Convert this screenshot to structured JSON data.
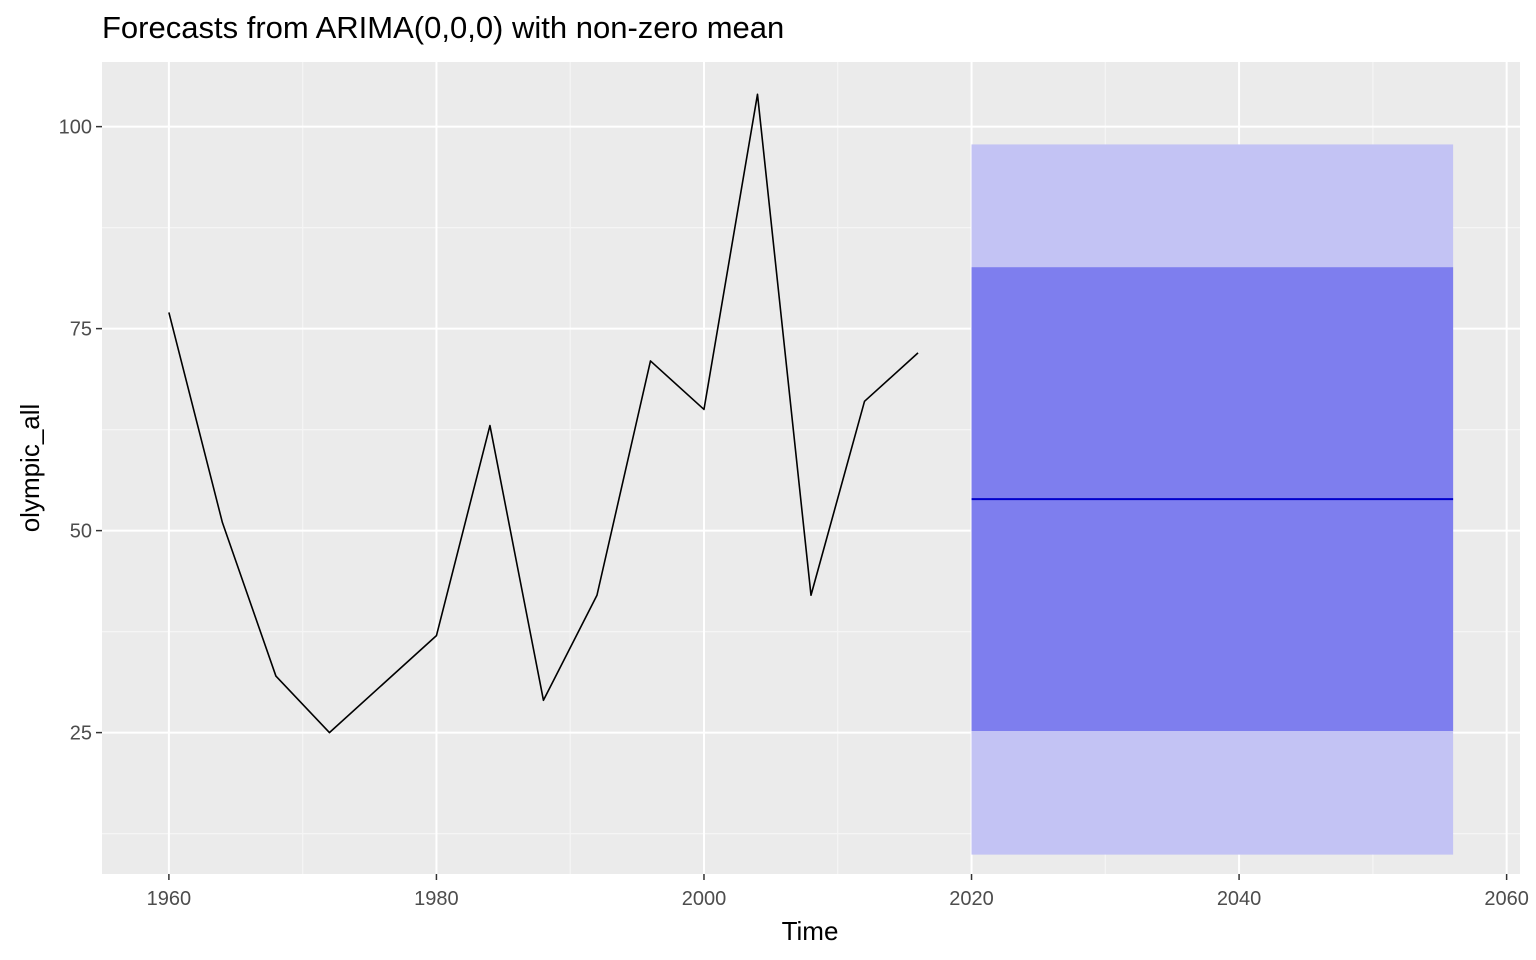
{
  "chart_data": {
    "type": "line",
    "title": "Forecasts from ARIMA(0,0,0) with non-zero mean",
    "xlabel": "Time",
    "ylabel": "olympic_all",
    "xlim": [
      1955,
      2061
    ],
    "ylim": [
      7.5,
      108
    ],
    "x_major_ticks": [
      1960,
      1980,
      2000,
      2020,
      2040,
      2060
    ],
    "x_minor_ticks": [
      1970,
      1990,
      2010,
      2030,
      2050
    ],
    "y_major_ticks": [
      25,
      50,
      75,
      100
    ],
    "y_minor_ticks": [
      12.5,
      37.5,
      62.5,
      87.5
    ],
    "grid": true,
    "legend": "none",
    "series": [
      {
        "x": [
          1960,
          1964,
          1968,
          1972,
          1976,
          1980,
          1984,
          1988,
          1992,
          1996,
          2000,
          2004,
          2008,
          2012,
          2016
        ],
        "values": [
          77,
          51,
          32,
          25,
          31,
          37,
          63,
          29,
          42,
          71,
          65,
          104,
          42,
          66,
          72
        ],
        "color": "#000000"
      }
    ],
    "forecast": {
      "x_start": 2020,
      "x_end": 2056,
      "mean": 53.9,
      "pi80": [
        25.2,
        82.6
      ],
      "pi95": [
        9.9,
        97.8
      ],
      "mean_color": "#0000cc",
      "pi80_color": "#7e7eee",
      "pi95_color": "#c3c3f4"
    },
    "colors": {
      "panel_bg": "#ebebeb",
      "grid_major": "#ffffff",
      "grid_minor": "#f5f5f5",
      "tick_text": "#4d4d4d"
    }
  }
}
